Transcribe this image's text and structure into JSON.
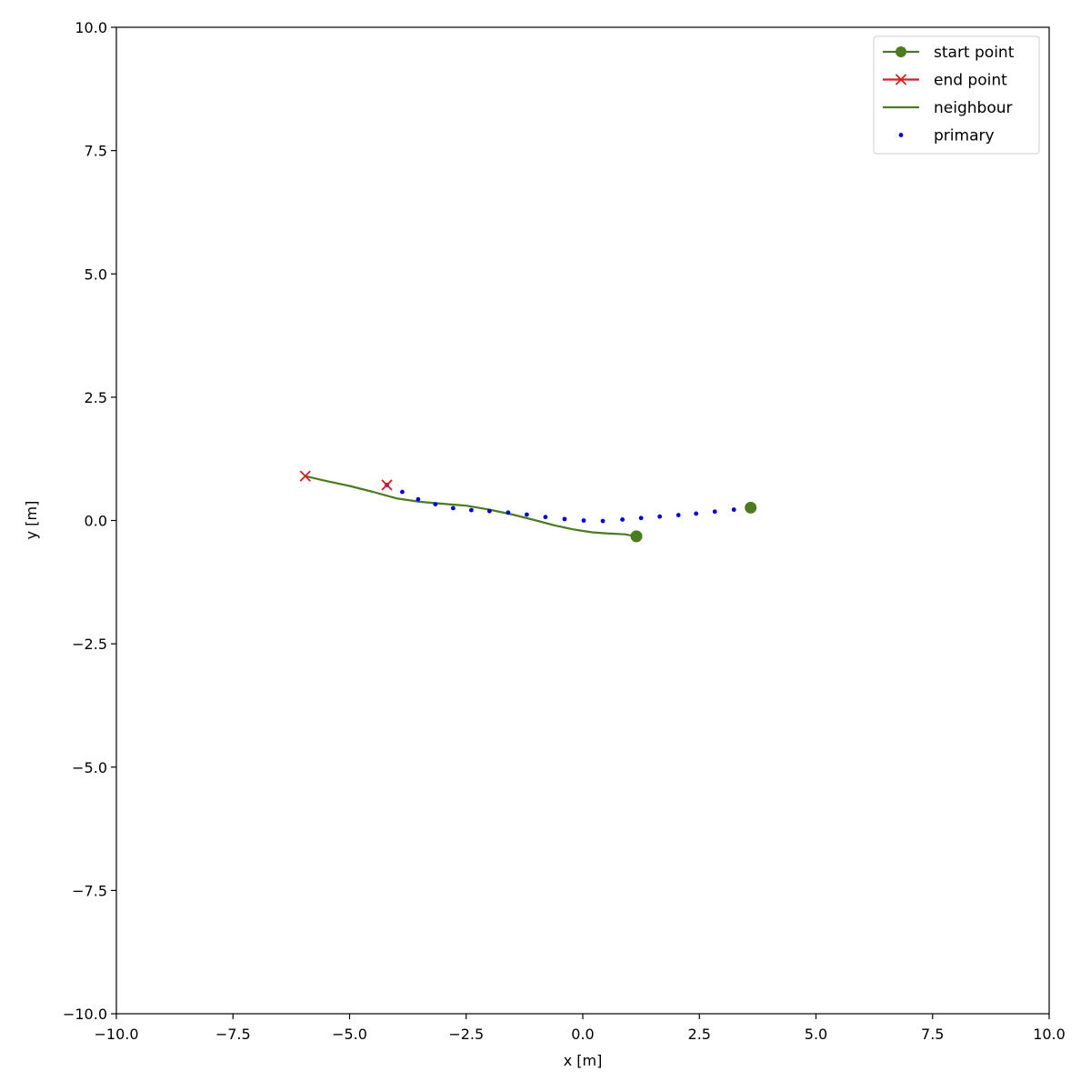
{
  "chart_data": {
    "type": "line",
    "xlabel": "x [m]",
    "ylabel": "y [m]",
    "xlim": [
      -10,
      10
    ],
    "ylim": [
      -10,
      10
    ],
    "xticks": [
      -10,
      -7.5,
      -5,
      -2.5,
      0,
      2.5,
      5,
      7.5,
      10
    ],
    "yticks": [
      -10,
      -7.5,
      -5,
      -2.5,
      0,
      2.5,
      5,
      7.5,
      10
    ],
    "xtick_labels": [
      "−10.0",
      "−7.5",
      "−5.0",
      "−2.5",
      "0.0",
      "2.5",
      "5.0",
      "7.5",
      "10.0"
    ],
    "ytick_labels": [
      "−10.0",
      "−7.5",
      "−5.0",
      "−2.5",
      "0.0",
      "2.5",
      "5.0",
      "7.5",
      "10.0"
    ],
    "grid": false,
    "legend_position": "top-right",
    "legend": [
      {
        "label": "start point",
        "marker": "circle-line",
        "color": "#4a7c1f"
      },
      {
        "label": "end point",
        "marker": "x-line",
        "color": "#d62020"
      },
      {
        "label": "neighbour",
        "marker": "line",
        "color": "#4a7c1f"
      },
      {
        "label": "primary",
        "marker": "dot",
        "color": "#0000dd"
      }
    ],
    "series": [
      {
        "name": "neighbour",
        "kind": "line",
        "color": "#4a7c1f",
        "x": [
          1.15,
          0.9,
          0.5,
          0.2,
          -0.2,
          -0.6,
          -1.0,
          -1.5,
          -2.0,
          -2.5,
          -3.0,
          -3.5,
          -4.0,
          -4.5,
          -5.0,
          -5.5,
          -5.95
        ],
        "y": [
          -0.32,
          -0.28,
          -0.26,
          -0.24,
          -0.18,
          -0.1,
          0.0,
          0.12,
          0.22,
          0.3,
          0.34,
          0.38,
          0.45,
          0.58,
          0.7,
          0.8,
          0.9
        ]
      },
      {
        "name": "primary",
        "kind": "dots",
        "color": "#0000dd",
        "x": [
          3.6,
          3.24,
          2.83,
          2.43,
          2.05,
          1.65,
          1.25,
          0.85,
          0.43,
          0.02,
          -0.39,
          -0.8,
          -1.2,
          -1.6,
          -2.0,
          -2.39,
          -2.78,
          -3.16,
          -3.53,
          -3.87,
          -4.2
        ],
        "y": [
          0.26,
          0.22,
          0.18,
          0.14,
          0.11,
          0.08,
          0.05,
          0.02,
          -0.01,
          0.0,
          0.03,
          0.07,
          0.12,
          0.16,
          0.19,
          0.21,
          0.25,
          0.33,
          0.43,
          0.58,
          0.72
        ]
      }
    ],
    "start_points": [
      {
        "series": "neighbour",
        "x": 1.15,
        "y": -0.32,
        "color": "#4a7c1f"
      },
      {
        "series": "primary",
        "x": 3.6,
        "y": 0.26,
        "color": "#4a7c1f"
      }
    ],
    "end_points": [
      {
        "series": "neighbour",
        "x": -5.95,
        "y": 0.9,
        "color": "#d62020"
      },
      {
        "series": "primary",
        "x": -4.2,
        "y": 0.72,
        "color": "#d62020"
      }
    ]
  }
}
